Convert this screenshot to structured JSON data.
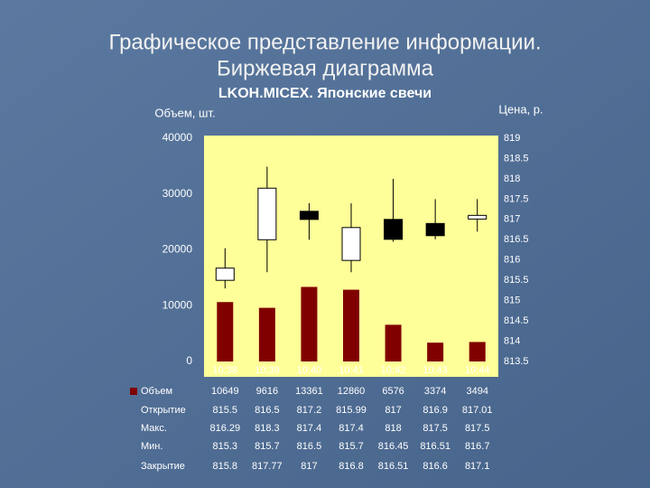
{
  "slide_title": [
    "Графическое представление информации.",
    "Биржевая диаграмма"
  ],
  "chart_data": {
    "type": "candlestick",
    "title": "LKOH.MICEX. Японские свечи",
    "ylabel": "Объем, шт.",
    "y2label": "Цена, р.",
    "categories": [
      "10:38",
      "10:39",
      "10:40",
      "10:41",
      "10:42",
      "10:43",
      "10:44"
    ],
    "series": [
      {
        "name": "Объем",
        "color": "#800000",
        "axis": "y",
        "values": [
          10649,
          9616,
          13361,
          12860,
          6576,
          3374,
          3494
        ]
      },
      {
        "name": "Открытие",
        "axis": "y2",
        "values": [
          815.5,
          816.5,
          817.2,
          815.99,
          817,
          816.9,
          817.01
        ]
      },
      {
        "name": "Макс.",
        "axis": "y2",
        "values": [
          816.29,
          818.3,
          817.4,
          817.4,
          818,
          817.5,
          817.5
        ]
      },
      {
        "name": "Мин.",
        "axis": "y2",
        "values": [
          815.3,
          815.7,
          816.5,
          815.7,
          816.45,
          816.51,
          816.7
        ]
      },
      {
        "name": "Закрытие",
        "axis": "y2",
        "values": [
          815.8,
          817.77,
          817,
          816.8,
          816.51,
          816.6,
          817.1
        ]
      }
    ],
    "ylim": [
      0,
      40000
    ],
    "yticks": [
      0,
      10000,
      20000,
      30000,
      40000
    ],
    "y2lim": [
      813.5,
      819
    ],
    "y2ticks": [
      813.5,
      814,
      814.5,
      815,
      815.5,
      816,
      816.5,
      817,
      817.5,
      818,
      818.5,
      819
    ],
    "up_color": "#ffffff",
    "down_color": "#000000",
    "plot_background": "#ffff99"
  }
}
